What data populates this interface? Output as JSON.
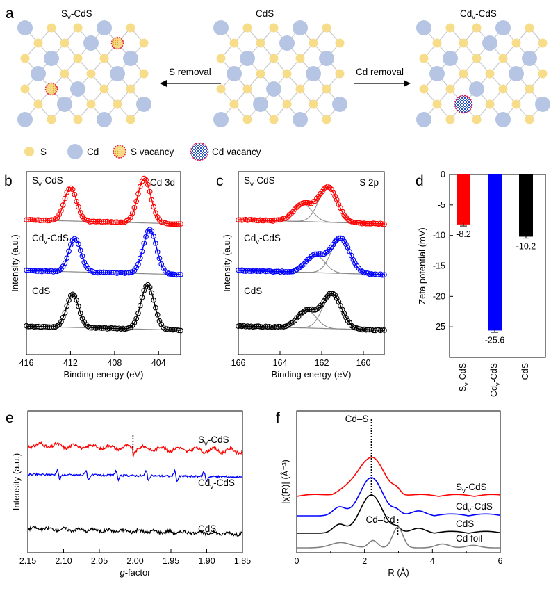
{
  "colors": {
    "red": "#ff0000",
    "blue": "#0000ff",
    "black": "#000000",
    "gray": "#808080",
    "s_atom": "#f7dc8a",
    "cd_atom": "#b6c5e4",
    "bond": "#c8c8c8",
    "vacancy_ring": "#e0184a"
  },
  "panel_a": {
    "label": "a",
    "lattices": [
      {
        "title": "S_v-CdS",
        "vacancy": "S vacancy"
      },
      {
        "title": "CdS",
        "vacancy": "none"
      },
      {
        "title": "Cd_v-CdS",
        "vacancy": "Cd vacancy"
      }
    ],
    "arrow_left": "S removal",
    "arrow_right": "Cd removal",
    "legend": [
      "S",
      "Cd",
      "S vacancy",
      "Cd vacancy"
    ]
  },
  "chart_data": [
    {
      "panel": "b",
      "type": "line",
      "title": "Cd 3d",
      "xlabel": "Binding energy (eV)",
      "ylabel": "Intensity (a.u.)",
      "xlim": [
        416,
        402
      ],
      "xticks": [
        416,
        412,
        408,
        404
      ],
      "series": [
        {
          "name": "S_v-CdS",
          "color": "#ff0000",
          "peaks": [
            {
              "center": 412.0,
              "height": 1.0,
              "width": 0.55
            },
            {
              "center": 405.3,
              "height": 1.33,
              "width": 0.6
            }
          ]
        },
        {
          "name": "Cd_v-CdS",
          "color": "#0000ff",
          "peaks": [
            {
              "center": 411.6,
              "height": 1.0,
              "width": 0.55
            },
            {
              "center": 404.8,
              "height": 1.33,
              "width": 0.6
            }
          ]
        },
        {
          "name": "CdS",
          "color": "#000000",
          "peaks": [
            {
              "center": 411.8,
              "height": 1.0,
              "width": 0.55
            },
            {
              "center": 405.0,
              "height": 1.33,
              "width": 0.6
            }
          ]
        }
      ]
    },
    {
      "panel": "c",
      "type": "line",
      "title": "S 2p",
      "xlabel": "Binding energy (eV)",
      "ylabel": "Intensity (a.u.)",
      "xlim": [
        166,
        159
      ],
      "xticks": [
        166,
        164,
        162,
        160
      ],
      "series": [
        {
          "name": "S_v-CdS",
          "color": "#ff0000",
          "peaks": [
            {
              "center": 161.7,
              "height": 1.0,
              "width": 0.45
            },
            {
              "center": 162.9,
              "height": 0.5,
              "width": 0.45
            }
          ]
        },
        {
          "name": "Cd_v-CdS",
          "color": "#0000ff",
          "peaks": [
            {
              "center": 161.1,
              "height": 1.0,
              "width": 0.45
            },
            {
              "center": 162.3,
              "height": 0.5,
              "width": 0.45
            }
          ]
        },
        {
          "name": "CdS",
          "color": "#000000",
          "peaks": [
            {
              "center": 161.5,
              "height": 1.0,
              "width": 0.45
            },
            {
              "center": 162.7,
              "height": 0.5,
              "width": 0.45
            }
          ]
        }
      ]
    },
    {
      "panel": "d",
      "type": "bar",
      "ylabel": "Zeta potential (mV)",
      "ylim": [
        -30,
        0
      ],
      "yticks": [
        0,
        -5,
        -10,
        -15,
        -20,
        -25
      ],
      "categories": [
        "S_v-CdS",
        "Cd_v-CdS",
        "CdS"
      ],
      "values": [
        -8.2,
        -25.6,
        -10.2
      ],
      "labels": [
        "-8.2",
        "-25.6",
        "-10.2"
      ],
      "errors": [
        0.25,
        0.3,
        0.25
      ],
      "colors": [
        "#ff0000",
        "#0000ff",
        "#000000"
      ]
    },
    {
      "panel": "e",
      "type": "line",
      "xlabel_italic": "g",
      "xlabel_rest": "-factor",
      "ylabel": "Intensity (a.u.)",
      "xlim": [
        2.15,
        1.85
      ],
      "xticks": [
        2.15,
        2.1,
        2.05,
        2.0,
        1.95,
        1.9,
        1.85
      ],
      "xtick_labels": [
        "2.15",
        "2.10",
        "2.05",
        "2.00",
        "1.95",
        "1.90",
        "1.85"
      ],
      "marker_g": 2.003,
      "series": [
        {
          "name": "S_v-CdS",
          "color": "#ff0000"
        },
        {
          "name": "Cd_v-CdS",
          "color": "#0000ff",
          "hyperfine_g": [
            2.107,
            2.067,
            2.025,
            1.983,
            1.943,
            1.902
          ]
        },
        {
          "name": "CdS",
          "color": "#000000"
        }
      ]
    },
    {
      "panel": "f",
      "type": "line",
      "xlabel": "R (Å)",
      "ylabel": "|χ(R)| (Å⁻³)",
      "xlim": [
        0,
        6
      ],
      "xticks": [
        0,
        2,
        4,
        6
      ],
      "annotations": [
        {
          "text": "Cd–S",
          "r": 2.2
        },
        {
          "text": "Cd–Cd",
          "r": 2.98
        }
      ],
      "series": [
        {
          "name": "S_v-CdS",
          "color": "#ff0000",
          "main_peak_r": 2.2
        },
        {
          "name": "Cd_v-CdS",
          "color": "#0000ff",
          "main_peak_r": 2.2
        },
        {
          "name": "CdS",
          "color": "#000000",
          "main_peak_r": 2.2
        },
        {
          "name": "Cd foil",
          "color": "#808080",
          "main_peak_r": 2.98
        }
      ]
    }
  ]
}
